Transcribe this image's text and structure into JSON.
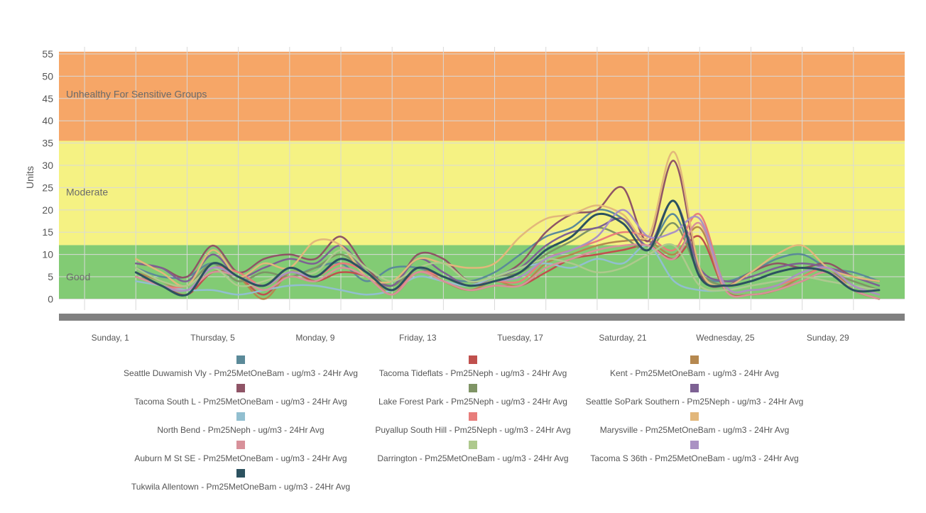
{
  "chart_data": {
    "type": "line",
    "ylabel": "Units",
    "xlabel": "",
    "ylim": [
      -2,
      55
    ],
    "yticks": [
      0,
      5,
      10,
      15,
      20,
      25,
      30,
      35,
      40,
      45,
      50,
      55
    ],
    "x_range_days": [
      -1,
      32
    ],
    "x_tick_labels": [
      {
        "day": 1,
        "label": "Sunday, 1"
      },
      {
        "day": 5,
        "label": "Thursday, 5"
      },
      {
        "day": 9,
        "label": "Monday, 9"
      },
      {
        "day": 13,
        "label": "Friday, 13"
      },
      {
        "day": 17,
        "label": "Tuesday, 17"
      },
      {
        "day": 21,
        "label": "Saturday, 21"
      },
      {
        "day": 25,
        "label": "Wednesday, 25"
      },
      {
        "day": 29,
        "label": "Sunday, 29"
      }
    ],
    "grid": true,
    "legend_position": "bottom",
    "bands": [
      {
        "label": "Good",
        "from": 0,
        "to": 12.1,
        "color": "#82cb74"
      },
      {
        "label": "Moderate",
        "from": 12.1,
        "to": 35.5,
        "color": "#f5f283"
      },
      {
        "label": "Unhealthy For Sensitive Groups",
        "from": 35.5,
        "to": 55.5,
        "color": "#f6a667"
      }
    ],
    "x": [
      2,
      3,
      4,
      5,
      6,
      7,
      8,
      9,
      10,
      11,
      12,
      13,
      14,
      15,
      16,
      17,
      18,
      19,
      20,
      21,
      22,
      23,
      24,
      25,
      26,
      27,
      28,
      29,
      30,
      31
    ],
    "series": [
      {
        "name": "Seattle Duwamish Vly - Pm25MetOneBam - ug/m3 - 24Hr Avg",
        "color": "#5b8a99",
        "values": [
          7,
          5,
          5,
          8,
          4,
          6,
          5,
          7,
          8,
          4,
          7,
          7,
          5,
          4,
          6,
          10,
          14,
          16,
          20,
          18,
          12,
          19,
          6,
          4,
          6,
          9,
          10,
          7,
          6,
          4
        ]
      },
      {
        "name": "Tacoma Tideflats - Pm25Neph - ug/m3 - 24Hr Avg",
        "color": "#c0504d",
        "values": [
          5,
          3,
          1,
          6,
          5,
          1,
          6,
          4,
          6,
          5,
          1,
          6,
          4,
          2,
          3,
          3,
          6,
          9,
          10,
          11,
          12,
          9,
          14,
          2,
          1,
          2,
          4,
          6,
          2,
          0
        ]
      },
      {
        "name": "Kent - Pm25MetOneBam - ug/m3 - 24Hr Avg",
        "color": "#b5884f",
        "values": [
          6,
          4,
          2,
          7,
          5,
          0,
          6,
          5,
          8,
          6,
          1,
          7,
          4,
          2,
          4,
          3,
          8,
          10,
          12,
          13,
          13,
          10,
          16,
          2,
          1,
          2,
          5,
          7,
          2,
          0
        ]
      },
      {
        "name": "Tacoma South L - Pm25MetOneBam - ug/m3 - 24Hr Avg",
        "color": "#8f5466",
        "values": [
          8,
          7,
          5,
          12,
          6,
          9,
          10,
          9,
          14,
          7,
          3,
          10,
          9,
          4,
          5,
          8,
          15,
          19,
          20,
          25,
          13,
          31,
          6,
          3,
          6,
          8,
          7,
          8,
          5,
          4
        ]
      },
      {
        "name": "Lake Forest Park - Pm25Neph - ug/m3 - 24Hr Avg",
        "color": "#7f9465",
        "values": [
          7,
          4,
          3,
          8,
          4,
          6,
          5,
          7,
          10,
          6,
          3,
          7,
          5,
          3,
          5,
          6,
          10,
          13,
          16,
          14,
          11,
          17,
          6,
          3,
          4,
          6,
          7,
          6,
          4,
          2
        ]
      },
      {
        "name": "Seattle SoPark Southern - Pm25Neph - ug/m3 - 24Hr Avg",
        "color": "#7d6193",
        "values": [
          8,
          7,
          4,
          10,
          5,
          7,
          9,
          8,
          12,
          6,
          3,
          9,
          6,
          3,
          5,
          7,
          12,
          15,
          16,
          18,
          12,
          22,
          7,
          4,
          5,
          7,
          8,
          7,
          5,
          3
        ]
      },
      {
        "name": "North Bend - Pm25Neph - ug/m3 - 24Hr Avg",
        "color": "#92bfd0",
        "values": [
          4,
          3,
          2,
          2,
          1,
          2,
          3,
          3,
          2,
          1,
          2,
          5,
          4,
          3,
          5,
          7,
          8,
          7,
          9,
          8,
          12,
          4,
          2,
          2,
          3,
          4,
          5,
          4,
          3,
          2
        ]
      },
      {
        "name": "Puyallup South Hill - Pm25Neph - ug/m3 - 24Hr Avg",
        "color": "#e87d7b",
        "values": [
          6,
          3,
          3,
          7,
          6,
          3,
          6,
          5,
          8,
          6,
          2,
          6,
          5,
          3,
          4,
          4,
          9,
          11,
          13,
          15,
          14,
          11,
          19,
          3,
          2,
          3,
          5,
          7,
          3,
          1
        ]
      },
      {
        "name": "Marysville - Pm25MetOneBam - ug/m3 - 24Hr Avg",
        "color": "#e2b77b",
        "values": [
          9,
          6,
          3,
          11,
          5,
          8,
          7,
          13,
          12,
          5,
          4,
          9,
          8,
          7,
          8,
          14,
          18,
          19,
          21,
          19,
          14,
          33,
          7,
          3,
          6,
          10,
          12,
          7,
          5,
          4
        ]
      },
      {
        "name": "Auburn M St SE - Pm25MetOneBam - ug/m3 - 24Hr Avg",
        "color": "#d8919a",
        "values": [
          5,
          3,
          2,
          6,
          5,
          2,
          5,
          4,
          7,
          5,
          1,
          6,
          4,
          2,
          3,
          3,
          7,
          9,
          11,
          12,
          12,
          9,
          17,
          2,
          1,
          2,
          4,
          6,
          2,
          0
        ]
      },
      {
        "name": "Darrington - Pm25MetOneBam - ug/m3 - 24Hr Avg",
        "color": "#aec98d",
        "values": [
          7,
          4,
          3,
          7,
          3,
          4,
          6,
          6,
          11,
          7,
          4,
          7,
          8,
          4,
          5,
          7,
          9,
          8,
          6,
          7,
          10,
          12,
          3,
          2,
          3,
          4,
          5,
          4,
          3,
          2
        ]
      },
      {
        "name": "Tacoma S 36th - Pm25MetOneBam - ug/m3 - 24Hr Avg",
        "color": "#aa91c3",
        "values": [
          6,
          3,
          2,
          7,
          5,
          3,
          6,
          5,
          9,
          6,
          2,
          7,
          5,
          3,
          4,
          5,
          9,
          11,
          14,
          20,
          14,
          15,
          18,
          3,
          2,
          3,
          6,
          7,
          3,
          1
        ]
      },
      {
        "name": "Tukwila Allentown - Pm25MetOneBam - ug/m3 - 24Hr Avg",
        "color": "#2c5260",
        "values": [
          6,
          3,
          1,
          8,
          5,
          3,
          7,
          5,
          9,
          6,
          2,
          7,
          5,
          3,
          4,
          6,
          11,
          14,
          19,
          17,
          11,
          22,
          5,
          3,
          4,
          6,
          7,
          6,
          2,
          2
        ]
      }
    ]
  }
}
